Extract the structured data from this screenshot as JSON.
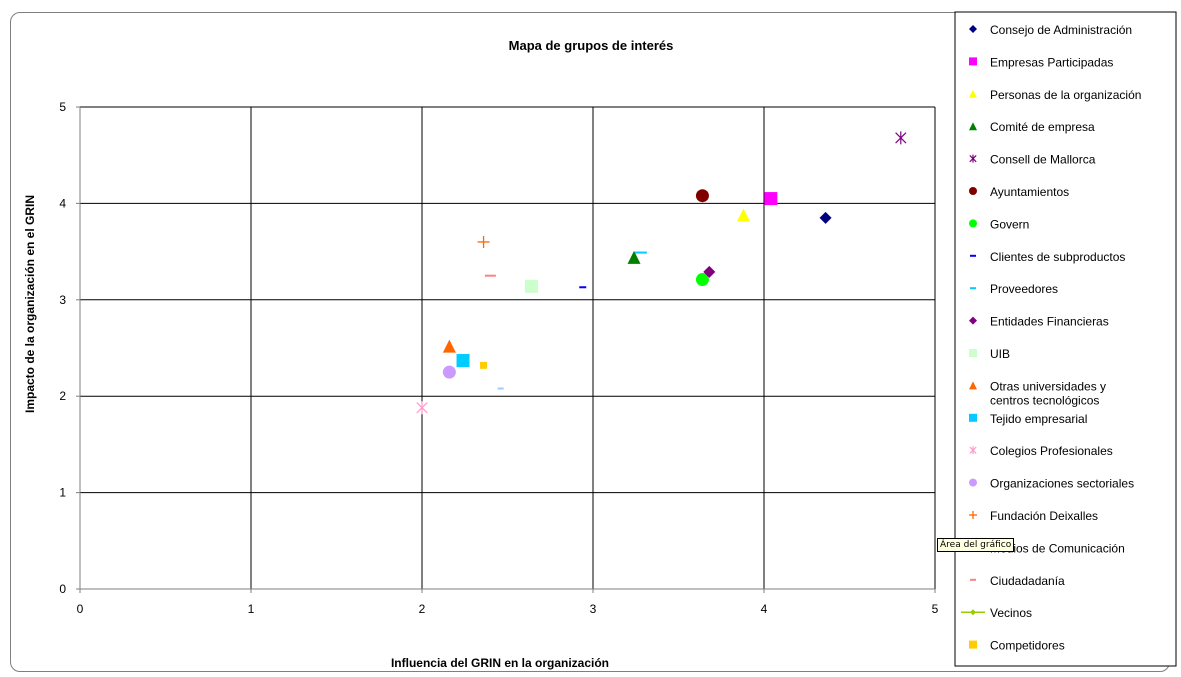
{
  "chart_data": {
    "type": "scatter",
    "title": "Mapa de grupos de interés",
    "xlabel": "Influencia del GRIN en la organización",
    "ylabel": "Impacto de la organización en el GRIN",
    "xlim": [
      0,
      5
    ],
    "ylim": [
      0,
      5
    ],
    "x_ticks": [
      "0",
      "1",
      "2",
      "3",
      "4",
      "5"
    ],
    "y_ticks": [
      "0",
      "1",
      "2",
      "3",
      "4",
      "5"
    ],
    "grid": true,
    "legend_position": "right",
    "series": [
      {
        "name": "Consejo de Administración",
        "marker": "diamond",
        "color": "#000080",
        "x": 4.36,
        "y": 3.85
      },
      {
        "name": "Empresas Participadas",
        "marker": "square",
        "color": "#ff00ff",
        "x": 4.04,
        "y": 4.05
      },
      {
        "name": "Personas de la organización",
        "marker": "triangle",
        "color": "#ffff00",
        "x": 3.88,
        "y": 3.88
      },
      {
        "name": "Comité de empresa",
        "marker": "triangle",
        "color": "#008000",
        "x": 3.24,
        "y": 3.44
      },
      {
        "name": "Consell de Mallorca",
        "marker": "star",
        "color": "#800080",
        "x": 4.8,
        "y": 4.68
      },
      {
        "name": "Ayuntamientos",
        "marker": "circle",
        "color": "#800000",
        "x": 3.64,
        "y": 4.08
      },
      {
        "name": "Govern",
        "marker": "circle",
        "color": "#00ff00",
        "x": 3.64,
        "y": 3.21
      },
      {
        "name": "Clientes de subproductos",
        "marker": "dash",
        "color": "#0000ff",
        "x": 2.94,
        "y": 3.13
      },
      {
        "name": "Proveedores",
        "marker": "dash",
        "color": "#00ccff",
        "x": 3.28,
        "y": 3.49
      },
      {
        "name": "Entidades Financieras",
        "marker": "diamond",
        "color": "#800080",
        "x": 3.68,
        "y": 3.29
      },
      {
        "name": "UIB",
        "marker": "square",
        "color": "#ccffcc",
        "x": 2.64,
        "y": 3.14
      },
      {
        "name": "Otras universidades y centros tecnológicos",
        "marker": "triangle",
        "color": "#ff6600",
        "x": 2.16,
        "y": 2.52
      },
      {
        "name": "Tejido empresarial",
        "marker": "square",
        "color": "#00ccff",
        "x": 2.24,
        "y": 2.37
      },
      {
        "name": "Colegios Profesionales",
        "marker": "star",
        "color": "#ff99cc",
        "x": 2.0,
        "y": 1.88
      },
      {
        "name": "Organizaciones  sectoriales",
        "marker": "circle",
        "color": "#cc99ff",
        "x": 2.16,
        "y": 2.25
      },
      {
        "name": "Fundación Deixalles",
        "marker": "plus",
        "color": "#ff6600",
        "x": 2.36,
        "y": 3.6
      },
      {
        "name": "Medios de Comunicación",
        "marker": "dash",
        "color": "#99ccff",
        "x": 2.46,
        "y": 2.08
      },
      {
        "name": "Ciudadadanía",
        "marker": "dash",
        "color": "#ff8080",
        "x": 2.4,
        "y": 3.25
      },
      {
        "name": "Vecinos",
        "marker": "line-diamond",
        "color": "#99cc00"
      },
      {
        "name": "Competidores",
        "marker": "square",
        "color": "#ffcc00",
        "x": 2.36,
        "y": 2.32
      }
    ]
  },
  "tooltip": "Área del gráfico"
}
